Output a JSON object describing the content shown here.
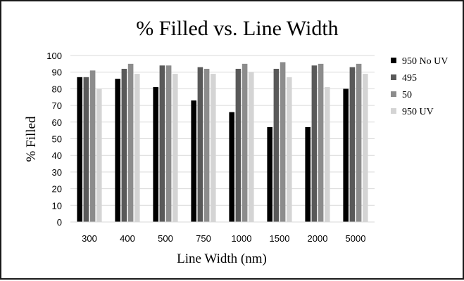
{
  "chart_data": {
    "type": "bar",
    "title": "% Filled vs. Line Width",
    "xlabel": "Line Width (nm)",
    "ylabel": "% Filled",
    "categories": [
      "300",
      "400",
      "500",
      "750",
      "1000",
      "1500",
      "2000",
      "5000"
    ],
    "ylim": [
      0,
      100
    ],
    "yticks": [
      0,
      10,
      20,
      30,
      40,
      50,
      60,
      70,
      80,
      90,
      100
    ],
    "grid": true,
    "legend_position": "right",
    "series": [
      {
        "name": "950 No UV",
        "color": "#000000",
        "values": [
          87,
          86,
          81,
          73,
          66,
          57,
          57,
          80
        ]
      },
      {
        "name": "495",
        "color": "#595959",
        "values": [
          87,
          92,
          94,
          93,
          92,
          92,
          94,
          93
        ]
      },
      {
        "name": "50",
        "color": "#8c8c8c",
        "values": [
          91,
          95,
          94,
          92,
          95,
          96,
          95,
          95
        ]
      },
      {
        "name": "950 UV",
        "color": "#d4d4d4",
        "values": [
          80,
          89,
          89,
          89,
          90,
          87,
          81,
          89
        ]
      }
    ]
  }
}
